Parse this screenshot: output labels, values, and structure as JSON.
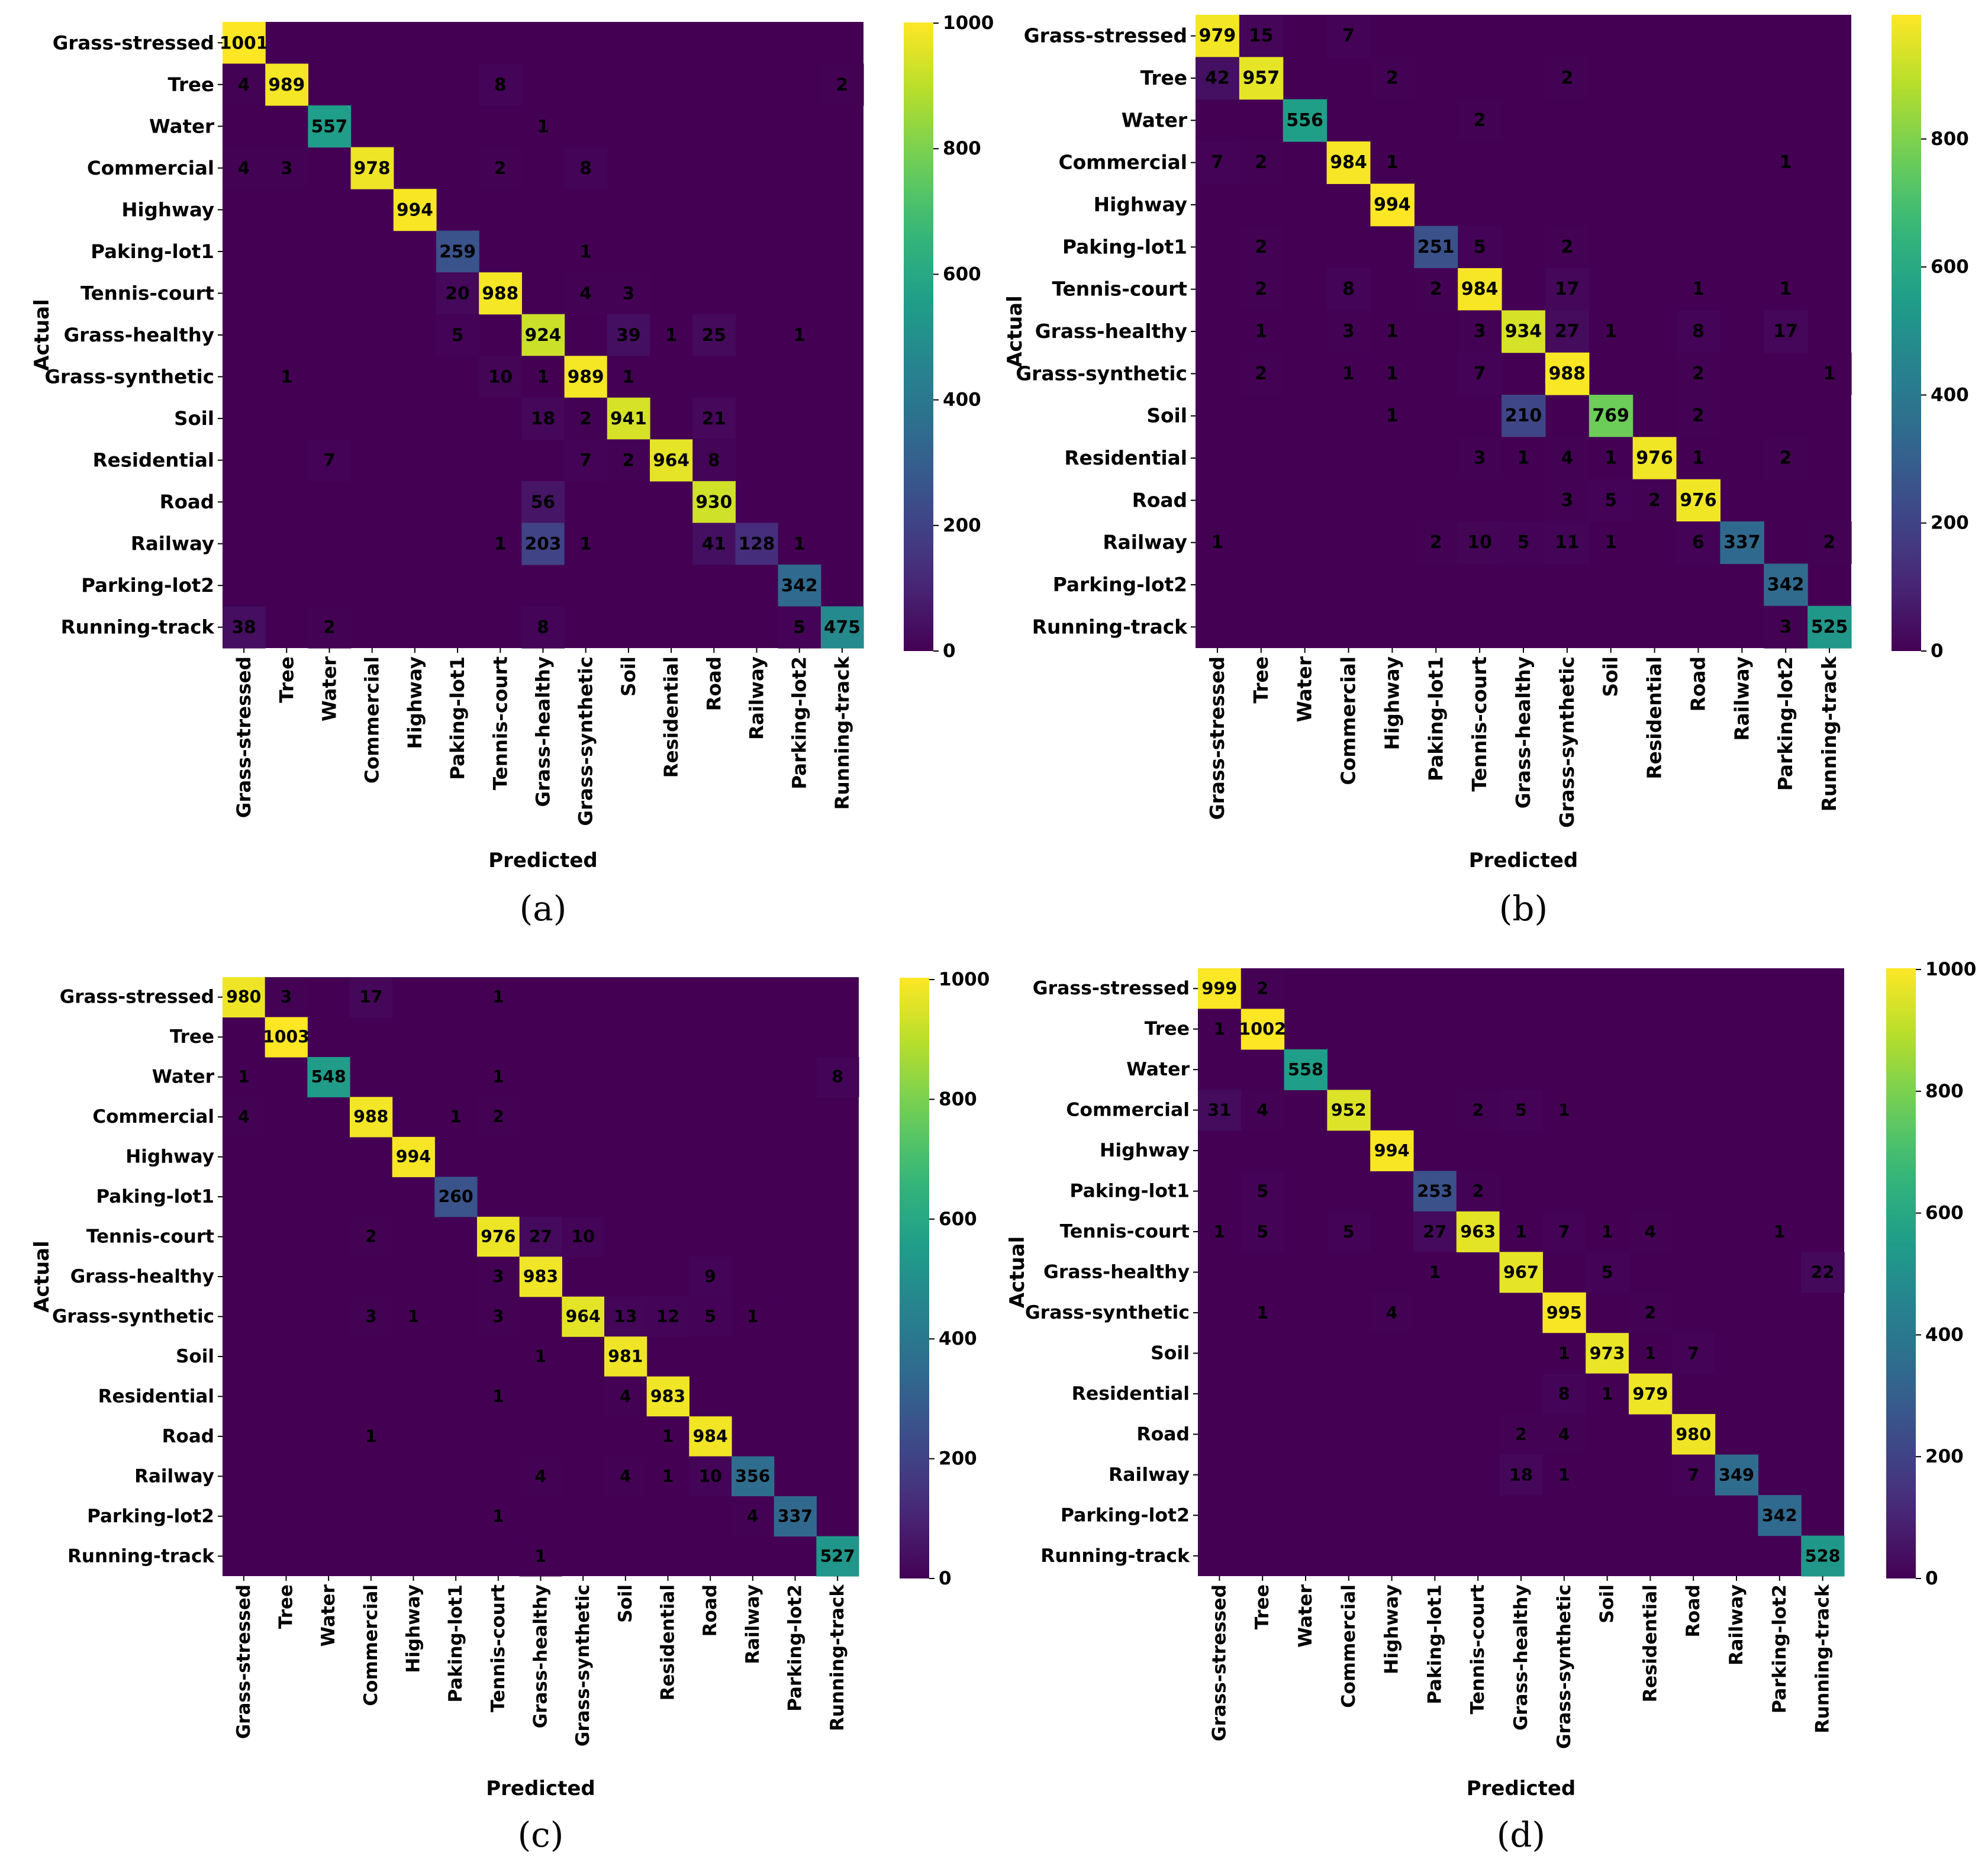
{
  "figure": {
    "captions": [
      "(a)",
      "(b)",
      "(c)",
      "(d)"
    ]
  },
  "chart_data": [
    {
      "type": "heatmap",
      "panel": "(a)",
      "title": "",
      "xlabel": "Predicted",
      "ylabel": "Actual",
      "classes": [
        "Grass-stressed",
        "Tree",
        "Water",
        "Commercial",
        "Highway",
        "Paking-lot1",
        "Tennis-court",
        "Grass-healthy",
        "Grass-synthetic",
        "Soil",
        "Residential",
        "Road",
        "Railway",
        "Parking-lot2",
        "Running-track"
      ],
      "colorbar": {
        "min": 0,
        "max": 1001,
        "ticks": [
          0,
          200,
          400,
          600,
          800,
          1000
        ],
        "colormap": "viridis"
      },
      "cells": [
        [
          0,
          0,
          1001
        ],
        [
          1,
          0,
          4
        ],
        [
          1,
          1,
          989
        ],
        [
          1,
          6,
          8
        ],
        [
          1,
          14,
          2
        ],
        [
          2,
          2,
          557
        ],
        [
          2,
          7,
          1
        ],
        [
          3,
          0,
          4
        ],
        [
          3,
          1,
          3
        ],
        [
          3,
          3,
          978
        ],
        [
          3,
          6,
          2
        ],
        [
          3,
          8,
          8
        ],
        [
          4,
          4,
          994
        ],
        [
          5,
          5,
          259
        ],
        [
          5,
          8,
          1
        ],
        [
          6,
          5,
          20
        ],
        [
          6,
          6,
          988
        ],
        [
          6,
          8,
          4
        ],
        [
          6,
          9,
          3
        ],
        [
          7,
          5,
          5
        ],
        [
          7,
          7,
          924
        ],
        [
          7,
          9,
          39
        ],
        [
          7,
          10,
          1
        ],
        [
          7,
          11,
          25
        ],
        [
          7,
          13,
          1
        ],
        [
          8,
          1,
          1
        ],
        [
          8,
          6,
          10
        ],
        [
          8,
          7,
          1
        ],
        [
          8,
          8,
          989
        ],
        [
          8,
          9,
          1
        ],
        [
          9,
          7,
          18
        ],
        [
          9,
          8,
          2
        ],
        [
          9,
          9,
          941
        ],
        [
          9,
          11,
          21
        ],
        [
          10,
          2,
          7
        ],
        [
          10,
          8,
          7
        ],
        [
          10,
          9,
          2
        ],
        [
          10,
          10,
          964
        ],
        [
          10,
          11,
          8
        ],
        [
          11,
          7,
          56
        ],
        [
          11,
          11,
          930
        ],
        [
          12,
          6,
          1
        ],
        [
          12,
          7,
          203
        ],
        [
          12,
          8,
          1
        ],
        [
          12,
          11,
          41
        ],
        [
          12,
          12,
          128
        ],
        [
          12,
          13,
          1
        ],
        [
          13,
          13,
          342
        ],
        [
          14,
          0,
          38
        ],
        [
          14,
          2,
          2
        ],
        [
          14,
          7,
          8
        ],
        [
          14,
          13,
          5
        ],
        [
          14,
          14,
          475
        ]
      ]
    },
    {
      "type": "heatmap",
      "panel": "(b)",
      "title": "",
      "xlabel": "Predicted",
      "ylabel": "Actual",
      "classes": [
        "Grass-stressed",
        "Tree",
        "Water",
        "Commercial",
        "Highway",
        "Paking-lot1",
        "Tennis-court",
        "Grass-healthy",
        "Grass-synthetic",
        "Soil",
        "Residential",
        "Road",
        "Railway",
        "Parking-lot2",
        "Running-track"
      ],
      "colorbar": {
        "min": 0,
        "max": 994,
        "ticks": [
          0,
          200,
          400,
          600,
          800
        ],
        "colormap": "viridis"
      },
      "cells": [
        [
          0,
          0,
          979
        ],
        [
          0,
          1,
          15
        ],
        [
          0,
          3,
          7
        ],
        [
          1,
          0,
          42
        ],
        [
          1,
          1,
          957
        ],
        [
          1,
          4,
          2
        ],
        [
          1,
          8,
          2
        ],
        [
          2,
          2,
          556
        ],
        [
          2,
          6,
          2
        ],
        [
          3,
          0,
          7
        ],
        [
          3,
          1,
          2
        ],
        [
          3,
          3,
          984
        ],
        [
          3,
          4,
          1
        ],
        [
          3,
          13,
          1
        ],
        [
          4,
          4,
          994
        ],
        [
          5,
          1,
          2
        ],
        [
          5,
          5,
          251
        ],
        [
          5,
          6,
          5
        ],
        [
          5,
          8,
          2
        ],
        [
          6,
          1,
          2
        ],
        [
          6,
          3,
          8
        ],
        [
          6,
          5,
          2
        ],
        [
          6,
          6,
          984
        ],
        [
          6,
          8,
          17
        ],
        [
          6,
          11,
          1
        ],
        [
          6,
          13,
          1
        ],
        [
          7,
          1,
          1
        ],
        [
          7,
          3,
          3
        ],
        [
          7,
          4,
          1
        ],
        [
          7,
          6,
          3
        ],
        [
          7,
          7,
          934
        ],
        [
          7,
          8,
          27
        ],
        [
          7,
          9,
          1
        ],
        [
          7,
          11,
          8
        ],
        [
          7,
          13,
          17
        ],
        [
          8,
          1,
          2
        ],
        [
          8,
          3,
          1
        ],
        [
          8,
          4,
          1
        ],
        [
          8,
          6,
          7
        ],
        [
          8,
          8,
          988
        ],
        [
          8,
          11,
          2
        ],
        [
          8,
          14,
          1
        ],
        [
          9,
          4,
          1
        ],
        [
          9,
          7,
          210
        ],
        [
          9,
          9,
          769
        ],
        [
          9,
          11,
          2
        ],
        [
          10,
          6,
          3
        ],
        [
          10,
          7,
          1
        ],
        [
          10,
          8,
          4
        ],
        [
          10,
          9,
          1
        ],
        [
          10,
          10,
          976
        ],
        [
          10,
          11,
          1
        ],
        [
          10,
          13,
          2
        ],
        [
          11,
          8,
          3
        ],
        [
          11,
          9,
          5
        ],
        [
          11,
          10,
          2
        ],
        [
          11,
          11,
          976
        ],
        [
          12,
          0,
          1
        ],
        [
          12,
          5,
          2
        ],
        [
          12,
          6,
          10
        ],
        [
          12,
          7,
          5
        ],
        [
          12,
          8,
          11
        ],
        [
          12,
          9,
          1
        ],
        [
          12,
          11,
          6
        ],
        [
          12,
          12,
          337
        ],
        [
          12,
          14,
          2
        ],
        [
          13,
          13,
          342
        ],
        [
          14,
          13,
          3
        ],
        [
          14,
          14,
          525
        ]
      ]
    },
    {
      "type": "heatmap",
      "panel": "(c)",
      "title": "",
      "xlabel": "Predicted",
      "ylabel": "Actual",
      "classes": [
        "Grass-stressed",
        "Tree",
        "Water",
        "Commercial",
        "Highway",
        "Paking-lot1",
        "Tennis-court",
        "Grass-healthy",
        "Grass-synthetic",
        "Soil",
        "Residential",
        "Road",
        "Railway",
        "Parking-lot2",
        "Running-track"
      ],
      "colorbar": {
        "min": 0,
        "max": 1003,
        "ticks": [
          0,
          200,
          400,
          600,
          800,
          1000
        ],
        "colormap": "viridis"
      },
      "cells": [
        [
          0,
          0,
          980
        ],
        [
          0,
          1,
          3
        ],
        [
          0,
          3,
          17
        ],
        [
          0,
          6,
          1
        ],
        [
          1,
          1,
          1003
        ],
        [
          2,
          0,
          1
        ],
        [
          2,
          2,
          548
        ],
        [
          2,
          6,
          1
        ],
        [
          2,
          14,
          8
        ],
        [
          3,
          0,
          4
        ],
        [
          3,
          3,
          988
        ],
        [
          3,
          5,
          1
        ],
        [
          3,
          6,
          2
        ],
        [
          4,
          4,
          994
        ],
        [
          5,
          5,
          260
        ],
        [
          6,
          3,
          2
        ],
        [
          6,
          6,
          976
        ],
        [
          6,
          7,
          27
        ],
        [
          6,
          8,
          10
        ],
        [
          7,
          6,
          3
        ],
        [
          7,
          7,
          983
        ],
        [
          7,
          11,
          9
        ],
        [
          8,
          3,
          3
        ],
        [
          8,
          4,
          1
        ],
        [
          8,
          6,
          3
        ],
        [
          8,
          8,
          964
        ],
        [
          8,
          9,
          13
        ],
        [
          8,
          10,
          12
        ],
        [
          8,
          11,
          5
        ],
        [
          8,
          12,
          1
        ],
        [
          9,
          7,
          1
        ],
        [
          9,
          9,
          981
        ],
        [
          10,
          6,
          1
        ],
        [
          10,
          9,
          4
        ],
        [
          10,
          10,
          983
        ],
        [
          11,
          3,
          1
        ],
        [
          11,
          10,
          1
        ],
        [
          11,
          11,
          984
        ],
        [
          12,
          7,
          4
        ],
        [
          12,
          9,
          4
        ],
        [
          12,
          10,
          1
        ],
        [
          12,
          11,
          10
        ],
        [
          12,
          12,
          356
        ],
        [
          13,
          6,
          1
        ],
        [
          13,
          12,
          4
        ],
        [
          13,
          13,
          337
        ],
        [
          14,
          7,
          1
        ],
        [
          14,
          14,
          527
        ]
      ]
    },
    {
      "type": "heatmap",
      "panel": "(d)",
      "title": "",
      "xlabel": "Predicted",
      "ylabel": "Actual",
      "classes": [
        "Grass-stressed",
        "Tree",
        "Water",
        "Commercial",
        "Highway",
        "Paking-lot1",
        "Tennis-court",
        "Grass-healthy",
        "Grass-synthetic",
        "Soil",
        "Residential",
        "Road",
        "Railway",
        "Parking-lot2",
        "Running-track"
      ],
      "colorbar": {
        "min": 0,
        "max": 1002,
        "ticks": [
          0,
          200,
          400,
          600,
          800,
          1000
        ],
        "colormap": "viridis"
      },
      "cells": [
        [
          0,
          0,
          999
        ],
        [
          0,
          1,
          2
        ],
        [
          1,
          0,
          1
        ],
        [
          1,
          1,
          1002
        ],
        [
          2,
          2,
          558
        ],
        [
          3,
          0,
          31
        ],
        [
          3,
          1,
          4
        ],
        [
          3,
          3,
          952
        ],
        [
          3,
          6,
          2
        ],
        [
          3,
          7,
          5
        ],
        [
          3,
          8,
          1
        ],
        [
          4,
          4,
          994
        ],
        [
          5,
          1,
          5
        ],
        [
          5,
          5,
          253
        ],
        [
          5,
          6,
          2
        ],
        [
          6,
          0,
          1
        ],
        [
          6,
          1,
          5
        ],
        [
          6,
          3,
          5
        ],
        [
          6,
          5,
          27
        ],
        [
          6,
          6,
          963
        ],
        [
          6,
          7,
          1
        ],
        [
          6,
          8,
          7
        ],
        [
          6,
          9,
          1
        ],
        [
          6,
          10,
          4
        ],
        [
          6,
          13,
          1
        ],
        [
          7,
          5,
          1
        ],
        [
          7,
          7,
          967
        ],
        [
          7,
          9,
          5
        ],
        [
          7,
          14,
          22
        ],
        [
          8,
          1,
          1
        ],
        [
          8,
          4,
          4
        ],
        [
          8,
          8,
          995
        ],
        [
          8,
          10,
          2
        ],
        [
          9,
          8,
          1
        ],
        [
          9,
          9,
          973
        ],
        [
          9,
          10,
          1
        ],
        [
          9,
          11,
          7
        ],
        [
          10,
          8,
          8
        ],
        [
          10,
          9,
          1
        ],
        [
          10,
          10,
          979
        ],
        [
          11,
          7,
          2
        ],
        [
          11,
          8,
          4
        ],
        [
          11,
          11,
          980
        ],
        [
          12,
          7,
          18
        ],
        [
          12,
          8,
          1
        ],
        [
          12,
          11,
          7
        ],
        [
          12,
          12,
          349
        ],
        [
          13,
          13,
          342
        ],
        [
          14,
          14,
          528
        ]
      ]
    }
  ]
}
